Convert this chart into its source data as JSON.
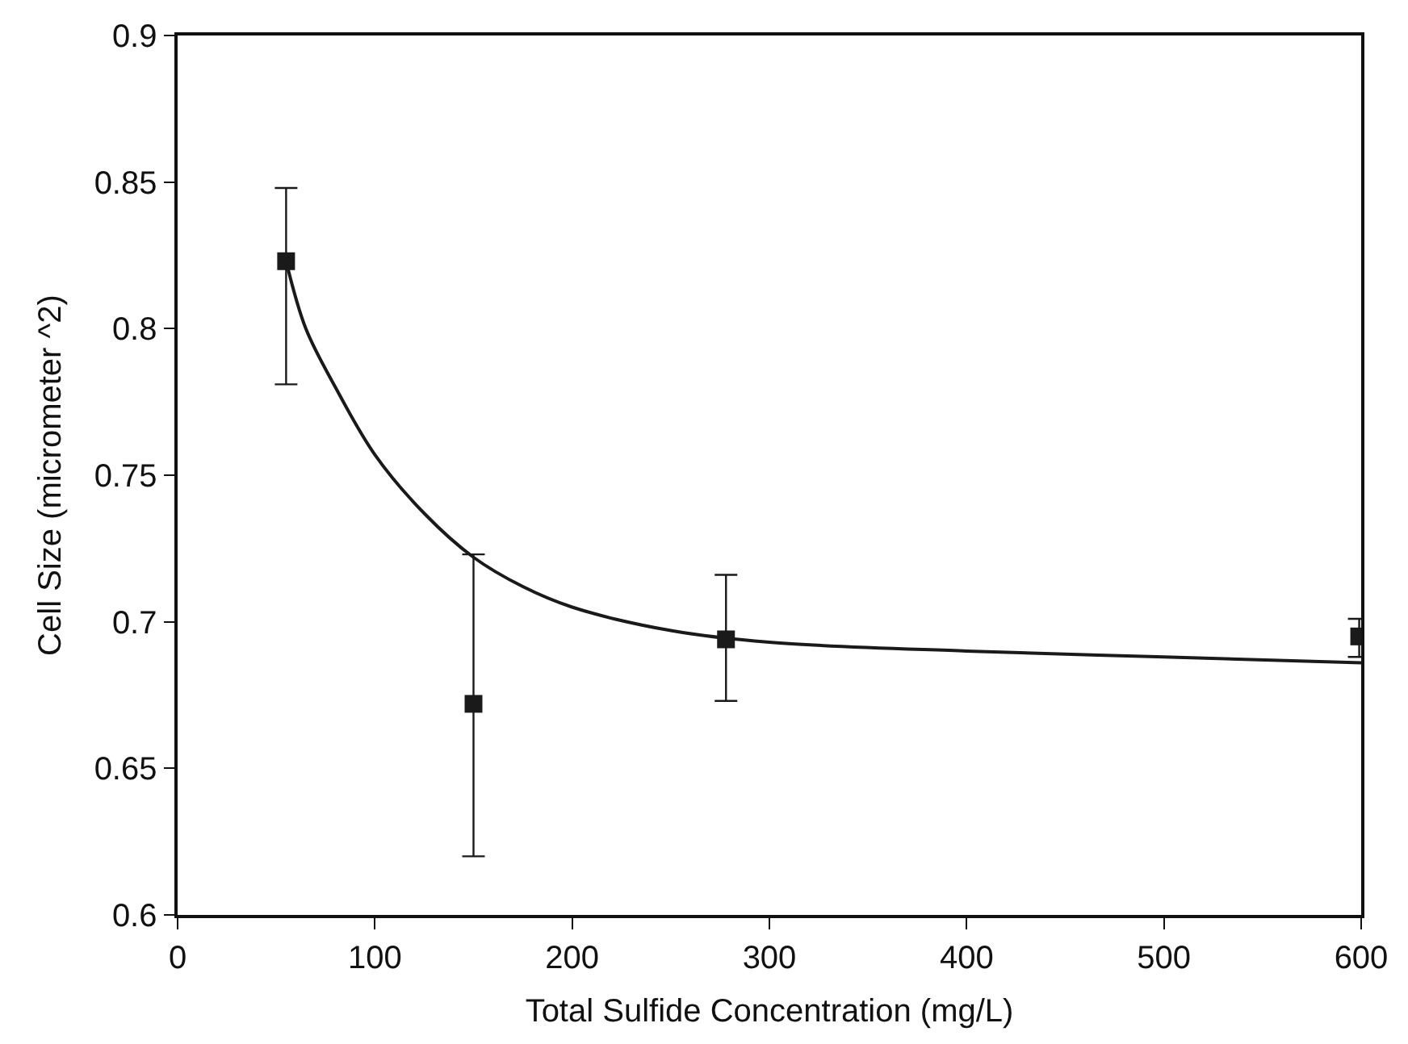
{
  "chart_data": {
    "type": "scatter",
    "xlabel": "Total Sulfide Concentration (mg/L)",
    "ylabel": "Cell Size (micrometer ^2)",
    "xlim": [
      0,
      600
    ],
    "xticks": [
      0,
      100,
      200,
      300,
      400,
      500,
      600
    ],
    "ylim": [
      0.6,
      0.9
    ],
    "yticks": [
      0.6,
      0.65,
      0.7,
      0.75,
      0.8,
      0.85,
      0.9
    ],
    "legend": false,
    "series": [
      {
        "marker": "square",
        "color": "#1a1a1a",
        "x": [
          55,
          150,
          278,
          599
        ],
        "values": [
          0.823,
          0.672,
          0.694,
          0.695
        ],
        "errors": [
          [
            0.781,
            0.848
          ],
          [
            0.62,
            0.723
          ],
          [
            0.673,
            0.716
          ],
          [
            0.688,
            0.701
          ]
        ]
      },
      {
        "type": "line",
        "marker": "none",
        "color": "#1a1a1a",
        "x": [
          55,
          65,
          80,
          100,
          125,
          150,
          175,
          200,
          250,
          300,
          400,
          500,
          600
        ],
        "values": [
          0.823,
          0.8,
          0.78,
          0.757,
          0.737,
          0.722,
          0.712,
          0.705,
          0.697,
          0.693,
          0.69,
          0.688,
          0.686
        ]
      }
    ]
  }
}
